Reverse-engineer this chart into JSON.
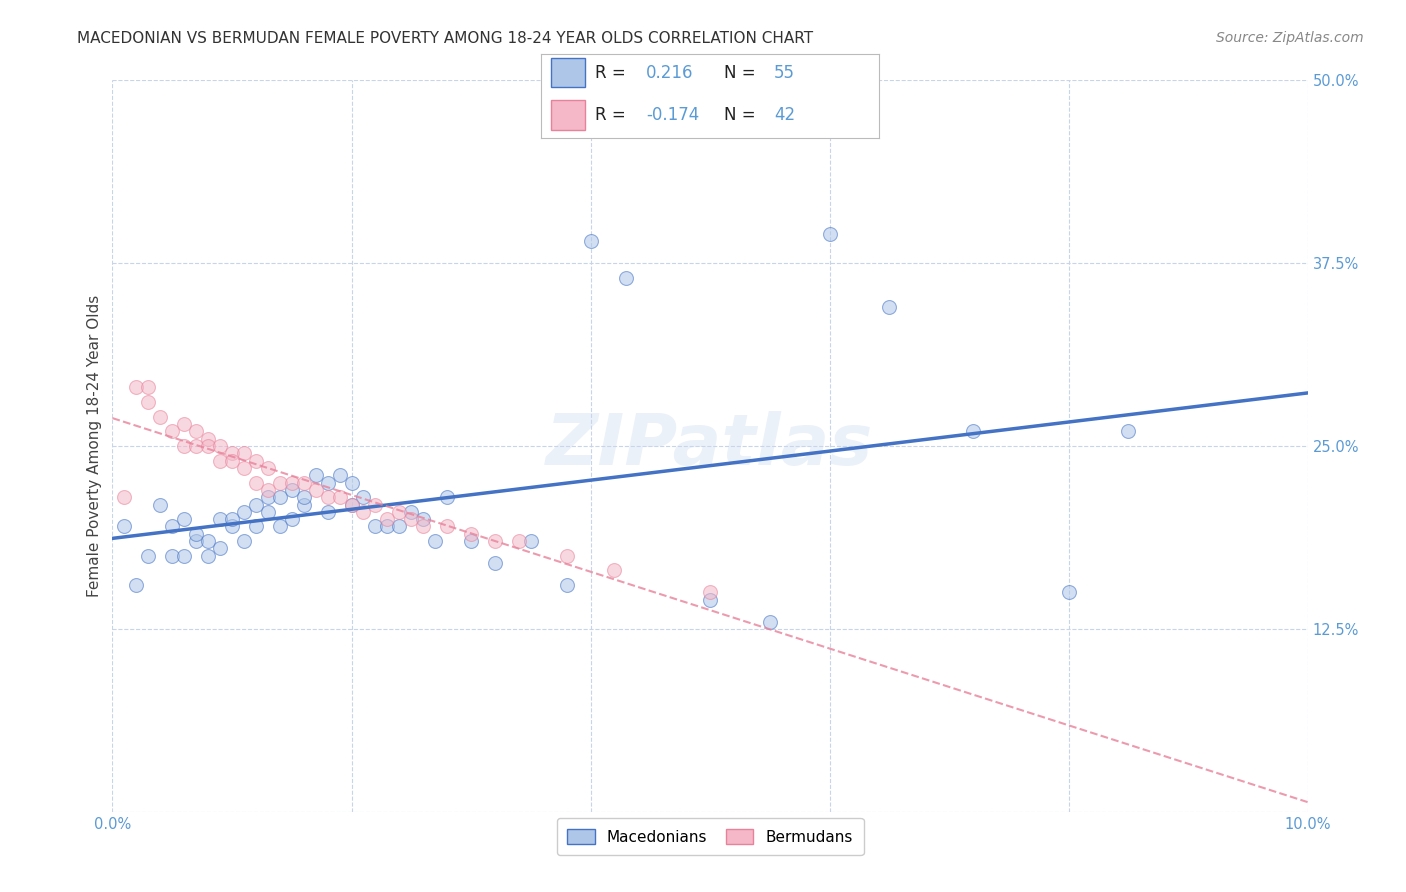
{
  "title": "MACEDONIAN VS BERMUDAN FEMALE POVERTY AMONG 18-24 YEAR OLDS CORRELATION CHART",
  "source": "Source: ZipAtlas.com",
  "ylabel": "Female Poverty Among 18-24 Year Olds",
  "xlim": [
    0.0,
    0.1
  ],
  "ylim": [
    0.0,
    0.5
  ],
  "xtick_positions": [
    0.0,
    0.02,
    0.04,
    0.06,
    0.08,
    0.1
  ],
  "xtick_labels": [
    "0.0%",
    "",
    "",
    "",
    "",
    "10.0%"
  ],
  "ytick_positions": [
    0.0,
    0.125,
    0.25,
    0.375,
    0.5
  ],
  "ytick_labels": [
    "",
    "12.5%",
    "25.0%",
    "37.5%",
    "50.0%"
  ],
  "macedonian_R": 0.216,
  "macedonian_N": 55,
  "bermudan_R": -0.174,
  "bermudan_N": 42,
  "macedonian_color": "#aec6e8",
  "bermudan_color": "#f4b8c8",
  "macedonian_line_color": "#4472c4",
  "bermudan_line_color": "#e8829a",
  "macedonian_x": [
    0.001,
    0.002,
    0.003,
    0.004,
    0.005,
    0.005,
    0.006,
    0.006,
    0.007,
    0.007,
    0.008,
    0.008,
    0.009,
    0.009,
    0.01,
    0.01,
    0.011,
    0.011,
    0.012,
    0.012,
    0.013,
    0.013,
    0.014,
    0.014,
    0.015,
    0.015,
    0.016,
    0.016,
    0.017,
    0.018,
    0.018,
    0.019,
    0.02,
    0.02,
    0.021,
    0.022,
    0.023,
    0.024,
    0.025,
    0.026,
    0.027,
    0.028,
    0.03,
    0.032,
    0.035,
    0.038,
    0.04,
    0.043,
    0.05,
    0.055,
    0.06,
    0.065,
    0.072,
    0.08,
    0.085
  ],
  "macedonian_y": [
    0.195,
    0.155,
    0.175,
    0.21,
    0.195,
    0.175,
    0.2,
    0.175,
    0.185,
    0.19,
    0.185,
    0.175,
    0.2,
    0.18,
    0.195,
    0.2,
    0.205,
    0.185,
    0.21,
    0.195,
    0.215,
    0.205,
    0.195,
    0.215,
    0.22,
    0.2,
    0.21,
    0.215,
    0.23,
    0.205,
    0.225,
    0.23,
    0.225,
    0.21,
    0.215,
    0.195,
    0.195,
    0.195,
    0.205,
    0.2,
    0.185,
    0.215,
    0.185,
    0.17,
    0.185,
    0.155,
    0.39,
    0.365,
    0.145,
    0.13,
    0.395,
    0.345,
    0.26,
    0.15,
    0.26
  ],
  "bermudan_x": [
    0.001,
    0.002,
    0.003,
    0.003,
    0.004,
    0.005,
    0.006,
    0.006,
    0.007,
    0.007,
    0.008,
    0.008,
    0.009,
    0.009,
    0.01,
    0.01,
    0.011,
    0.011,
    0.012,
    0.012,
    0.013,
    0.013,
    0.014,
    0.015,
    0.016,
    0.017,
    0.018,
    0.019,
    0.02,
    0.021,
    0.022,
    0.023,
    0.024,
    0.025,
    0.026,
    0.028,
    0.03,
    0.032,
    0.034,
    0.038,
    0.042,
    0.05
  ],
  "bermudan_y": [
    0.215,
    0.29,
    0.29,
    0.28,
    0.27,
    0.26,
    0.265,
    0.25,
    0.26,
    0.25,
    0.255,
    0.25,
    0.25,
    0.24,
    0.245,
    0.24,
    0.245,
    0.235,
    0.24,
    0.225,
    0.235,
    0.22,
    0.225,
    0.225,
    0.225,
    0.22,
    0.215,
    0.215,
    0.21,
    0.205,
    0.21,
    0.2,
    0.205,
    0.2,
    0.195,
    0.195,
    0.19,
    0.185,
    0.185,
    0.175,
    0.165,
    0.15
  ],
  "watermark_text": "ZIPatlas",
  "title_fontsize": 11,
  "axis_label_fontsize": 11,
  "tick_fontsize": 10.5,
  "source_fontsize": 10,
  "marker_size": 100,
  "marker_alpha": 0.55
}
